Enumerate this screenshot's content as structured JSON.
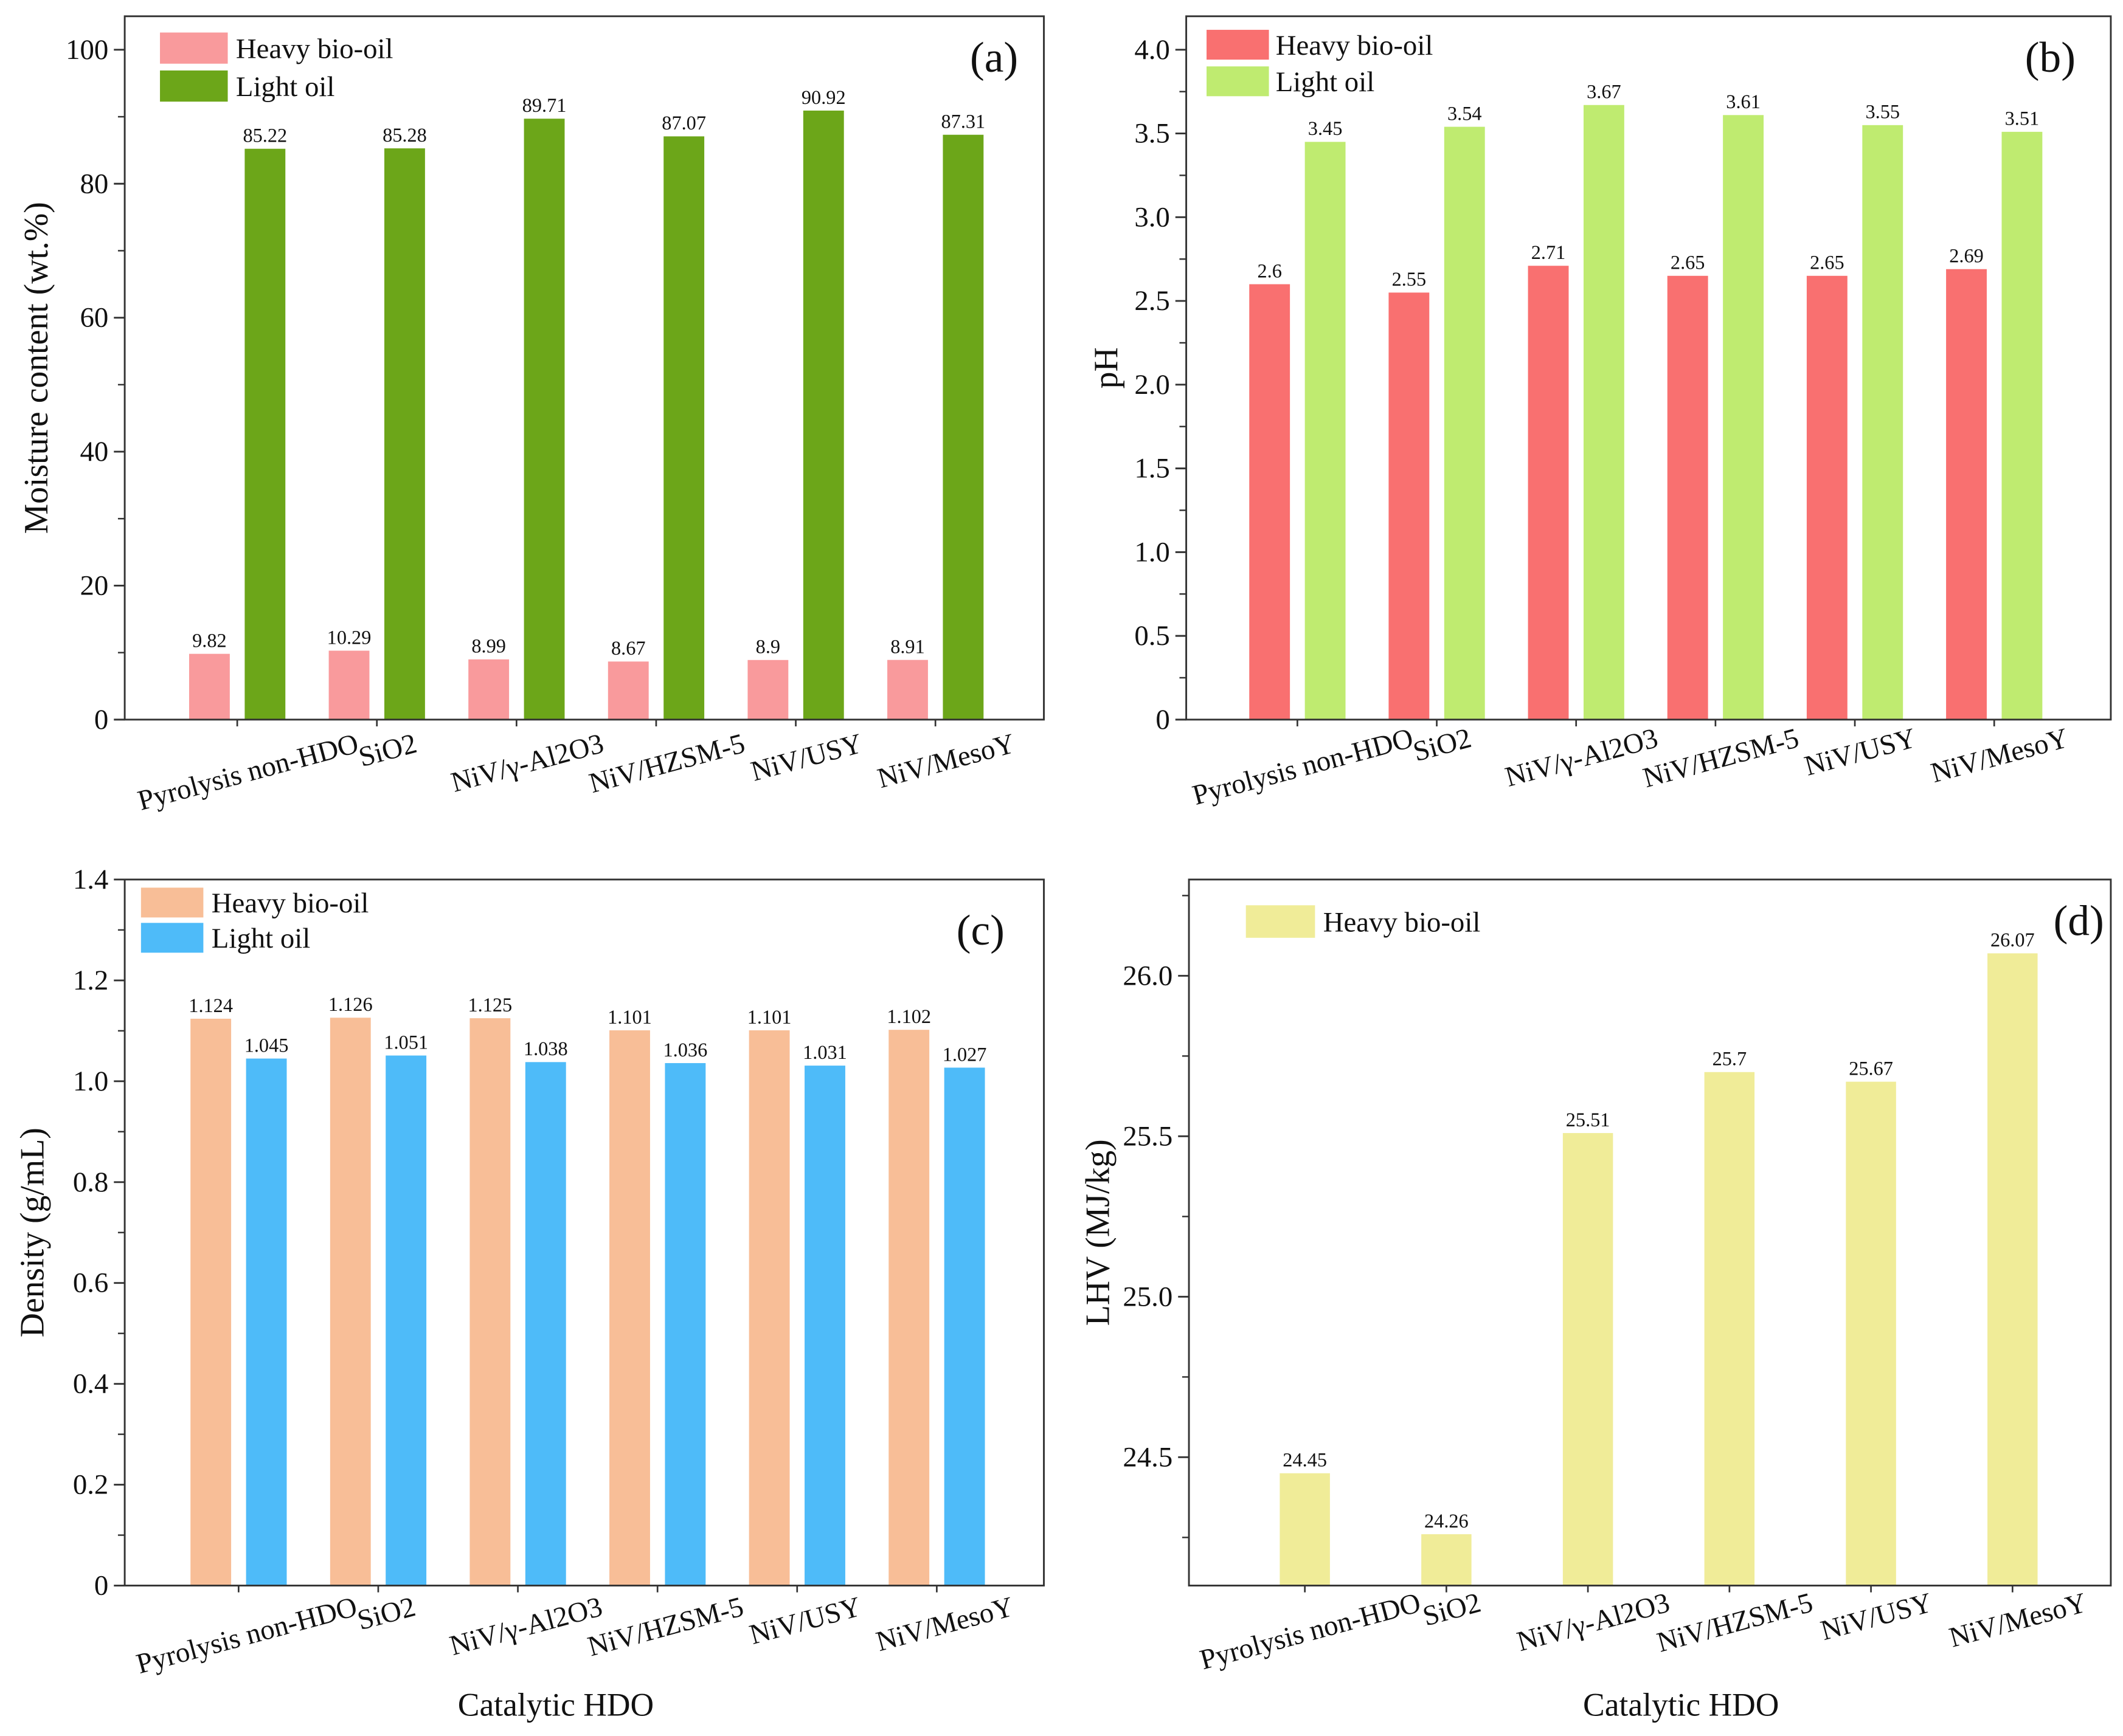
{
  "style": {
    "axis_color": "#333333"
  },
  "chart_data": [
    {
      "type": "bar",
      "panel_label": "(a)",
      "categories": [
        "Pyrolysis non-HDO",
        "SiO2",
        "NiV/γ-Al2O3",
        "NiV/HZSM-5",
        "NiV/USY",
        "NiV/MesoY"
      ],
      "series": [
        {
          "name": "Heavy bio-oil",
          "color": "#F99A9C",
          "values": [
            9.82,
            10.29,
            8.99,
            8.67,
            8.9,
            8.91
          ]
        },
        {
          "name": "Light oil",
          "color": "#6CA619",
          "values": [
            85.22,
            85.28,
            89.71,
            87.07,
            90.92,
            87.31
          ]
        }
      ],
      "xlabel": "",
      "ylabel": "Moisture content (wt.%)",
      "ylim": [
        0,
        105
      ],
      "yticks": [
        0,
        20,
        40,
        60,
        80,
        100
      ],
      "ytick_labels": [
        "0",
        "20",
        "40",
        "60",
        "80",
        "100"
      ],
      "yminor_step": 10
    },
    {
      "type": "bar",
      "panel_label": "(b)",
      "categories": [
        "Pyrolysis non-HDO",
        "SiO2",
        "NiV/γ-Al2O3",
        "NiV/HZSM-5",
        "NiV/USY",
        "NiV/MesoY"
      ],
      "series": [
        {
          "name": "Heavy bio-oil",
          "color": "#F97070",
          "values": [
            2.6,
            2.55,
            2.71,
            2.65,
            2.65,
            2.69
          ]
        },
        {
          "name": "Light oil",
          "color": "#BFEB70",
          "values": [
            3.45,
            3.54,
            3.67,
            3.61,
            3.55,
            3.51
          ]
        }
      ],
      "xlabel": "",
      "ylabel": "pH",
      "ylim": [
        0,
        4.2
      ],
      "yticks": [
        0,
        0.5,
        1.0,
        1.5,
        2.0,
        2.5,
        3.0,
        3.5,
        4.0
      ],
      "ytick_labels": [
        "0",
        "0.5",
        "1.0",
        "1.5",
        "2.0",
        "2.5",
        "3.0",
        "3.5",
        "4.0"
      ],
      "yminor_step": 0.25
    },
    {
      "type": "bar",
      "panel_label": "(c)",
      "categories": [
        "Pyrolysis non-HDO",
        "SiO2",
        "NiV/γ-Al2O3",
        "NiV/HZSM-5",
        "NiV/USY",
        "NiV/MesoY"
      ],
      "series": [
        {
          "name": "Heavy bio-oil",
          "color": "#F8BE97",
          "values": [
            1.124,
            1.126,
            1.125,
            1.101,
            1.101,
            1.102
          ]
        },
        {
          "name": "Light oil",
          "color": "#4EBBF9",
          "values": [
            1.045,
            1.051,
            1.038,
            1.036,
            1.031,
            1.027
          ]
        }
      ],
      "xlabel": "Catalytic HDO",
      "ylabel": "Density (g/mL)",
      "ylim": [
        0,
        1.4
      ],
      "yticks": [
        0,
        0.2,
        0.4,
        0.6,
        0.8,
        1.0,
        1.2,
        1.4
      ],
      "ytick_labels": [
        "0",
        "0.2",
        "0.4",
        "0.6",
        "0.8",
        "1.0",
        "1.2",
        "1.4"
      ],
      "yminor_step": 0.1
    },
    {
      "type": "bar",
      "panel_label": "(d)",
      "categories": [
        "Pyrolysis non-HDO",
        "SiO2",
        "NiV/γ-Al2O3",
        "NiV/HZSM-5",
        "NiV/USY",
        "NiV/MesoY"
      ],
      "series": [
        {
          "name": "Heavy bio-oil",
          "color": "#F0EC98",
          "values": [
            24.45,
            24.26,
            25.51,
            25.7,
            25.67,
            26.07
          ]
        }
      ],
      "xlabel": "Catalytic HDO",
      "ylabel": "LHV (MJ/kg)",
      "ylim": [
        24.1,
        26.3
      ],
      "yticks": [
        24.5,
        25.0,
        25.5,
        26.0
      ],
      "ytick_labels": [
        "24.5",
        "25.0",
        "25.5",
        "26.0"
      ],
      "yminor_step": 0.25
    }
  ]
}
